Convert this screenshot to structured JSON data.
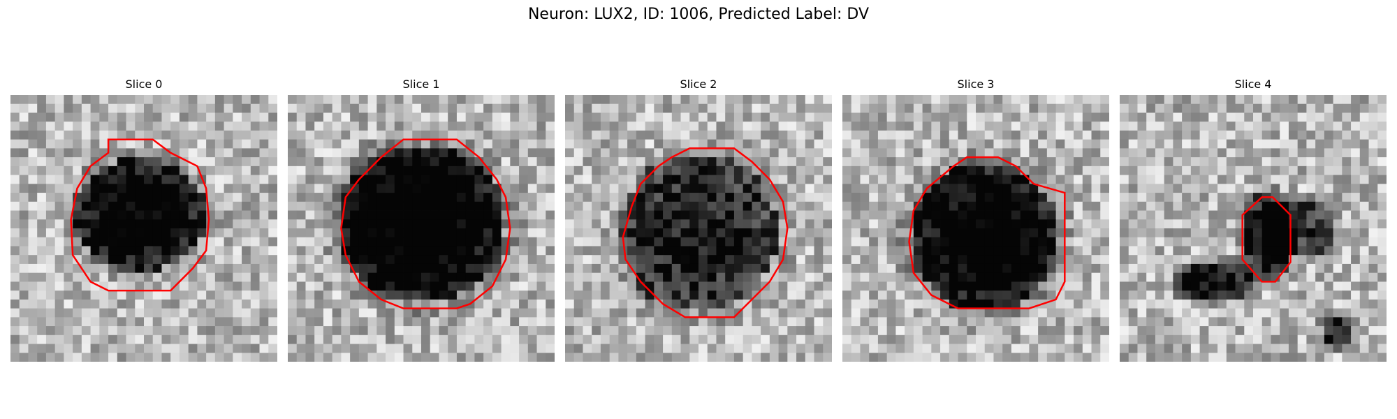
{
  "figure": {
    "title": "Neuron: LUX2, ID: 1006, Predicted Label: DV",
    "contour_color": "#ff0000"
  },
  "slices": [
    {
      "title": "Slice 0"
    },
    {
      "title": "Slice 1"
    },
    {
      "title": "Slice 2"
    },
    {
      "title": "Slice 3"
    },
    {
      "title": "Slice 4"
    }
  ]
}
